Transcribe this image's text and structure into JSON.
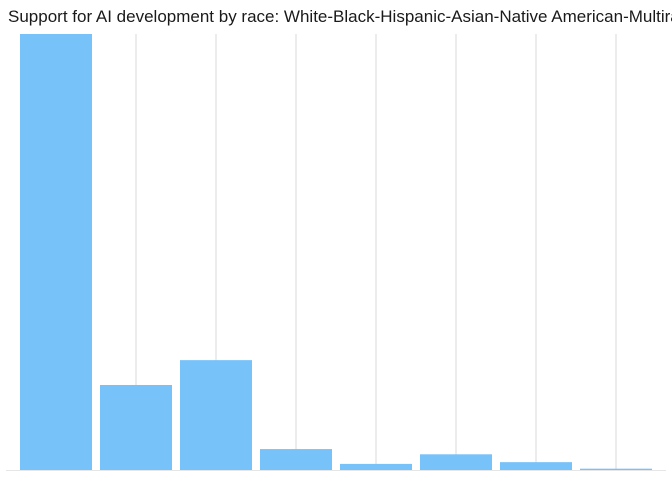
{
  "chart_data": {
    "type": "bar",
    "title": "Support for AI development by race: White-Black-Hispanic-Asian-Native American-Multiracial-Other-Prefer not to say",
    "xlabel": "",
    "ylabel": "",
    "categories": [
      "",
      "",
      "",
      "",
      "",
      "",
      "",
      ""
    ],
    "values": [
      100,
      19.5,
      25.2,
      4.8,
      1.4,
      3.6,
      1.8,
      0.3
    ],
    "ylim": [
      0,
      100
    ],
    "grid": "vertical",
    "legend": "none",
    "bar_color": "#77C2F8",
    "grid_color": "#E6E6E6",
    "axis_color": "#E6E6E6"
  }
}
